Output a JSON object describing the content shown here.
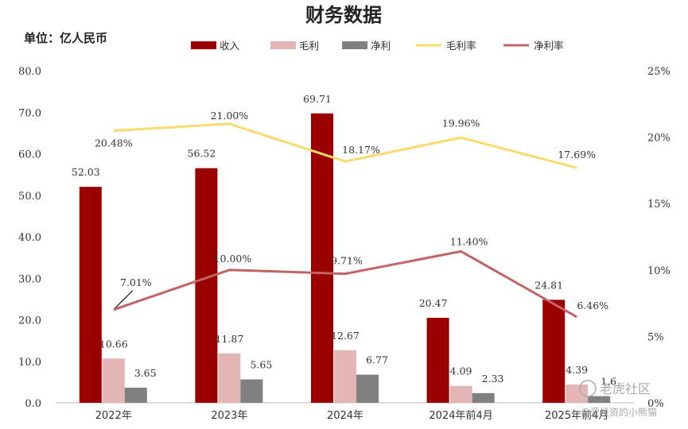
{
  "chart_data": {
    "type": "bar",
    "title": "财务数据",
    "unit_label": "单位：亿人民币",
    "categories": [
      "2022年",
      "2023年",
      "2024年",
      "2024年前4月",
      "2025年前4月"
    ],
    "bar_series": [
      {
        "name": "收入",
        "color": "#9b0000",
        "values": [
          52.03,
          56.52,
          69.71,
          20.47,
          24.81
        ],
        "labels": [
          "52.03",
          "56.52",
          "69.71",
          "20.47",
          "24.81"
        ]
      },
      {
        "name": "毛利",
        "color": "#e3b5b4",
        "values": [
          10.66,
          11.87,
          12.67,
          4.09,
          4.39
        ],
        "labels": [
          "10.66",
          "11.87",
          "12.67",
          "4.09",
          "4.39"
        ]
      },
      {
        "name": "净利",
        "color": "#808080",
        "values": [
          3.65,
          5.65,
          6.77,
          2.33,
          1.6
        ],
        "labels": [
          "3.65",
          "5.65",
          "6.77",
          "2.33",
          "1.6"
        ]
      }
    ],
    "line_series": [
      {
        "name": "毛利率",
        "color": "#fbd96a",
        "values": [
          20.48,
          21.0,
          18.17,
          19.96,
          17.69
        ],
        "labels": [
          "20.48%",
          "21.00%",
          "18.17%",
          "19.96%",
          "17.69%"
        ]
      },
      {
        "name": "净利率",
        "color": "#c26464",
        "values": [
          7.01,
          10.0,
          9.71,
          11.4,
          6.46
        ],
        "labels": [
          "7.01%",
          "10.00%",
          "9.71%",
          "11.40%",
          "6.46%"
        ]
      }
    ],
    "y_left": {
      "min": 0,
      "max": 80,
      "step": 10,
      "tick_labels": [
        "0.0",
        "10.0",
        "20.0",
        "30.0",
        "40.0",
        "50.0",
        "60.0",
        "70.0",
        "80.0"
      ]
    },
    "y_right": {
      "min": 0,
      "max": 25,
      "step": 5,
      "tick_labels": [
        "0%",
        "5%",
        "10%",
        "15%",
        "20%",
        "25%"
      ]
    },
    "grid": false,
    "legend_position": "top"
  },
  "watermark": {
    "logo_text": "老虎社区",
    "handle_text": "@爱投资的小熊猫"
  }
}
